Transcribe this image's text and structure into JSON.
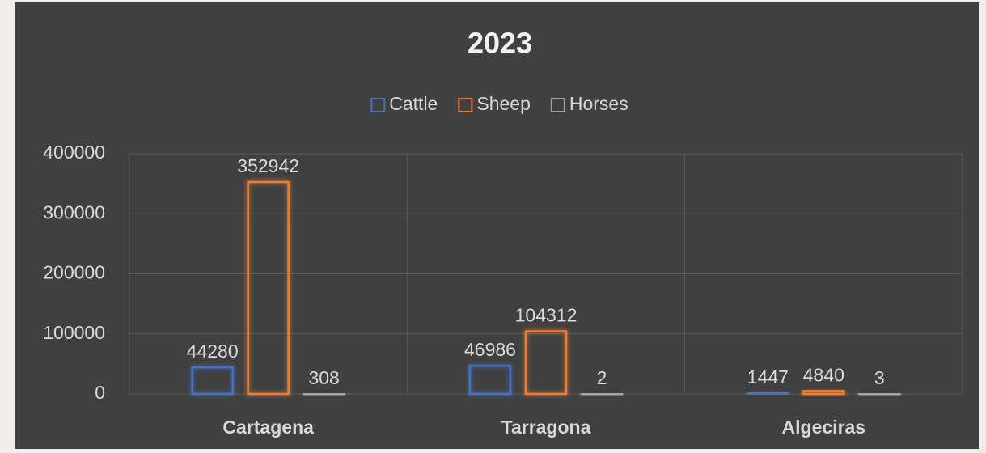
{
  "chart_data": {
    "type": "bar",
    "title": "2023",
    "categories": [
      "Cartagena",
      "Tarragona",
      "Algeciras"
    ],
    "series": [
      {
        "name": "Cattle",
        "color": "#4472c4",
        "values": [
          44280,
          46986,
          1447
        ]
      },
      {
        "name": "Sheep",
        "color": "#ed7d31",
        "values": [
          352942,
          104312,
          4840
        ]
      },
      {
        "name": "Horses",
        "color": "#a5a5a5",
        "values": [
          308,
          2,
          3
        ]
      }
    ],
    "ylim": [
      0,
      400000
    ],
    "yticks": [
      0,
      100000,
      200000,
      300000,
      400000
    ],
    "grid": true,
    "legend": "top"
  }
}
